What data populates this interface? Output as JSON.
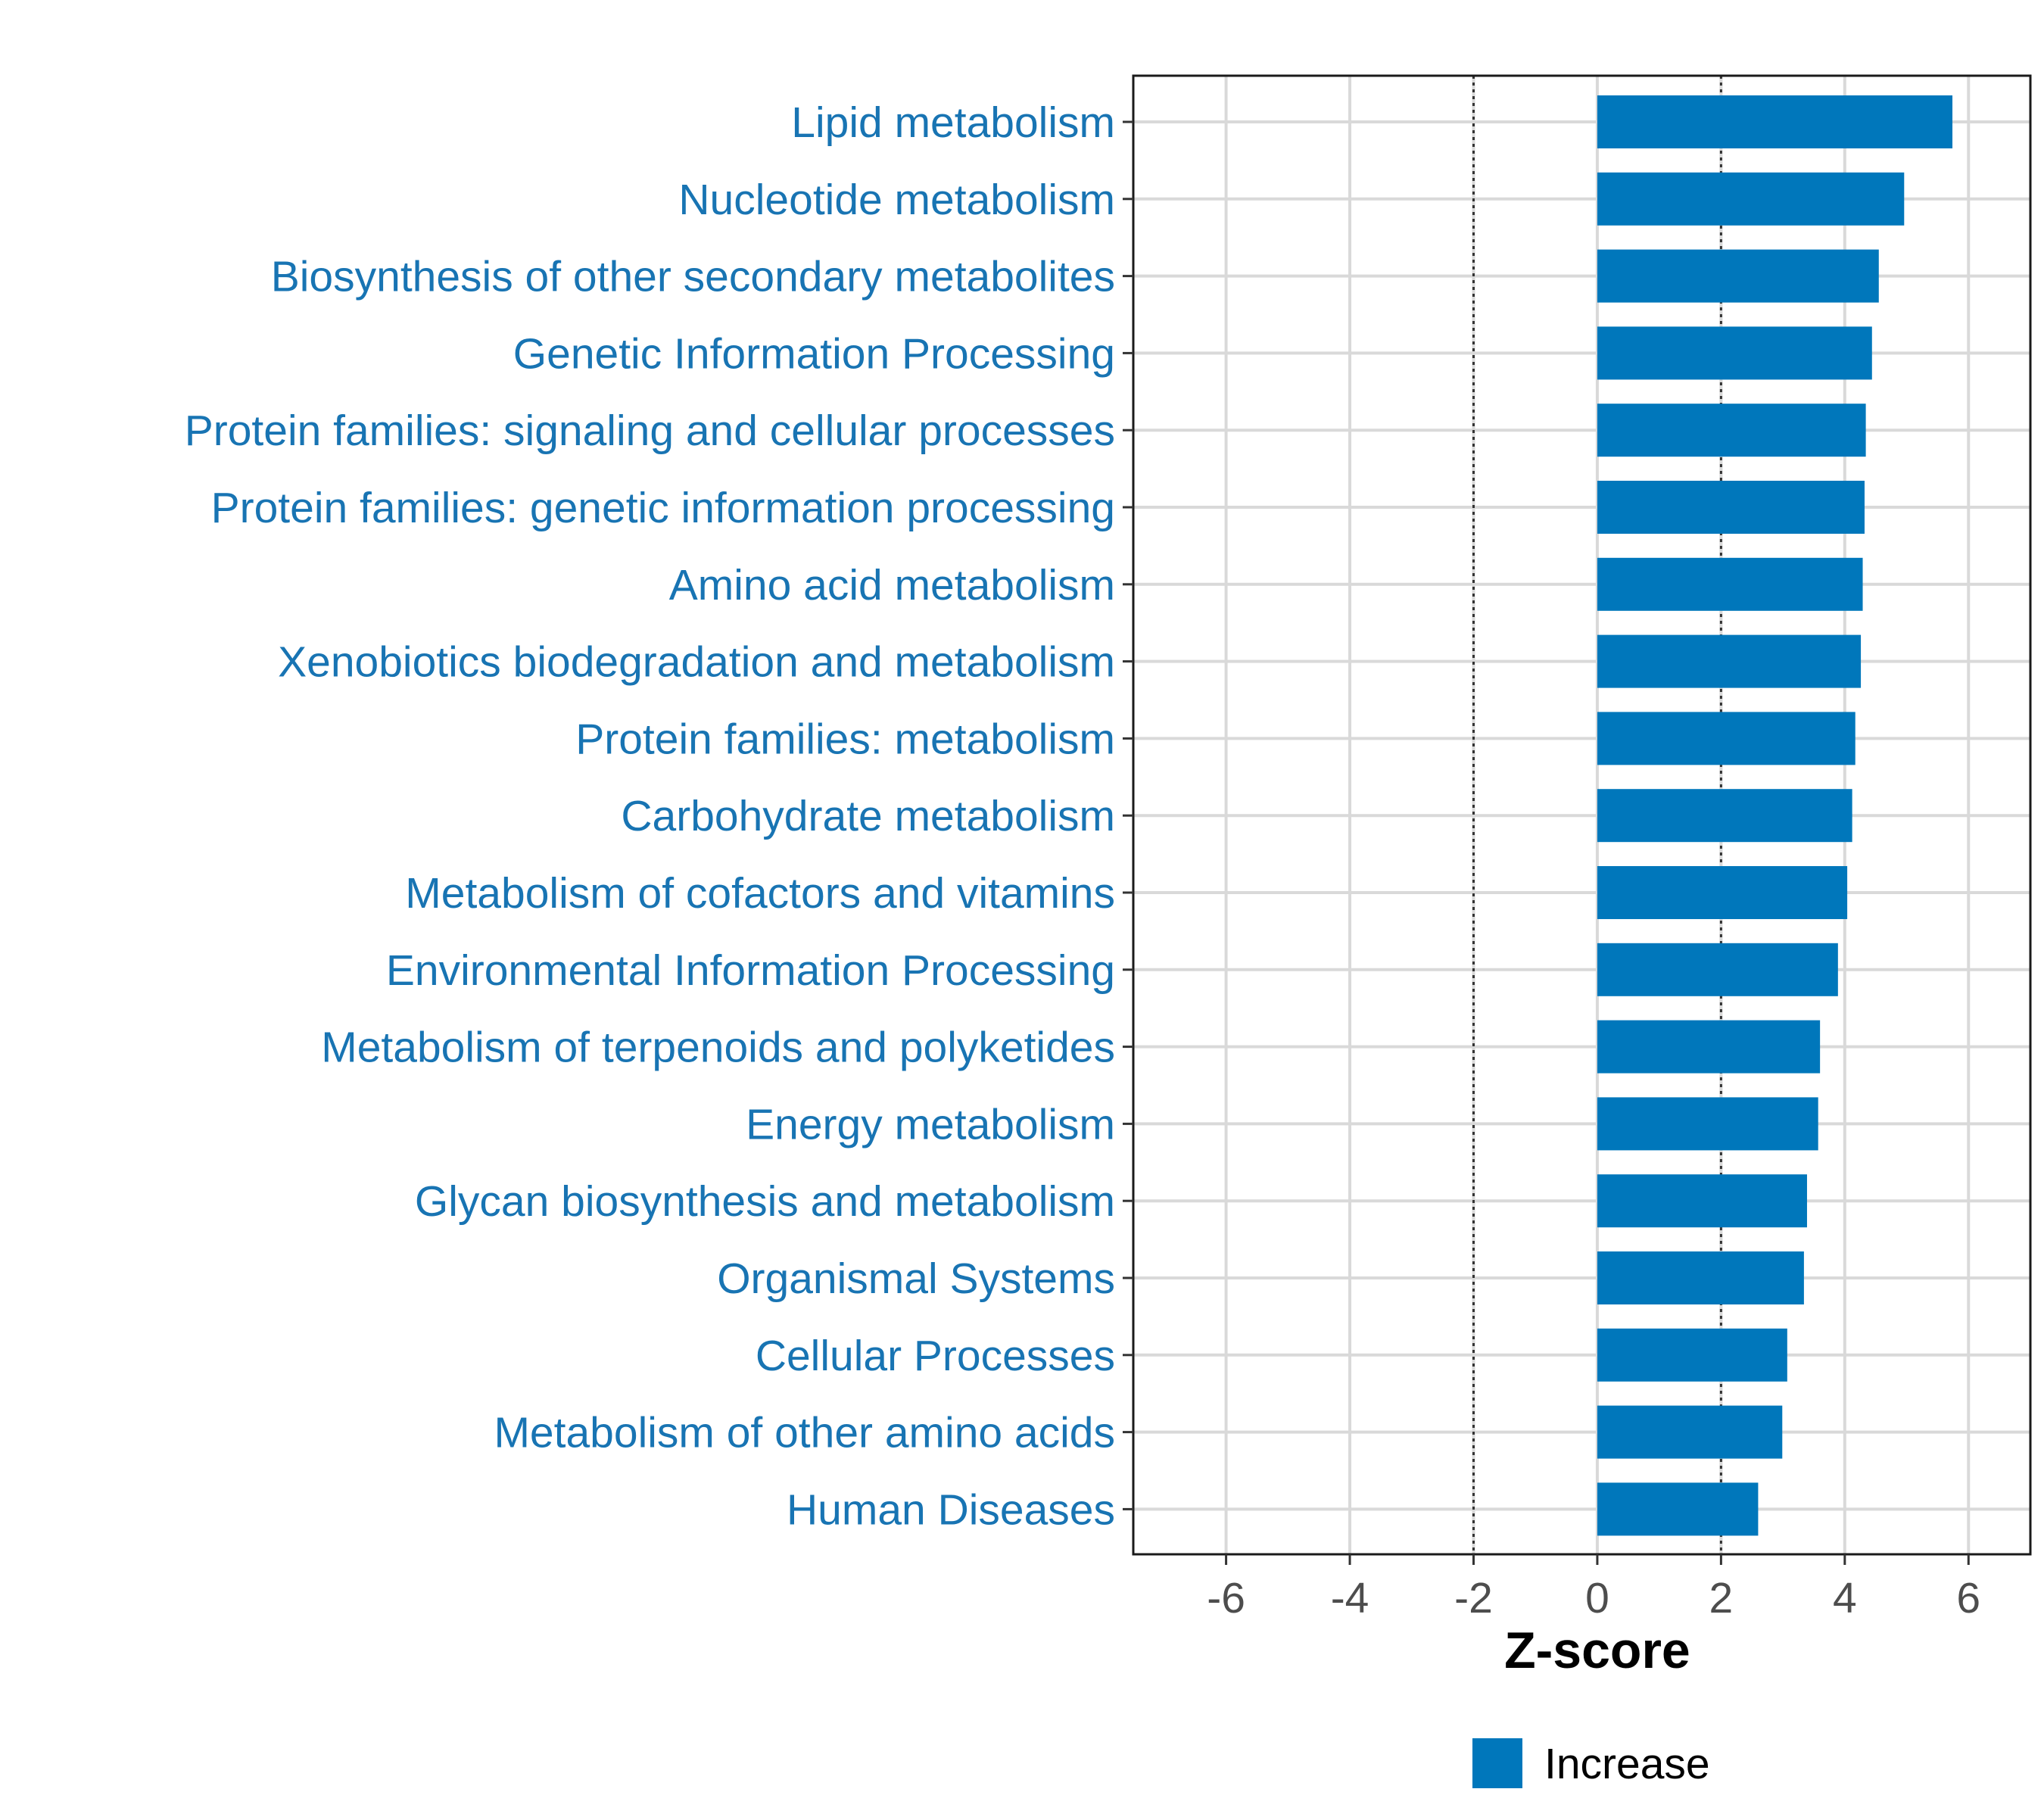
{
  "chart_data": {
    "type": "bar",
    "orientation": "horizontal",
    "title": "",
    "xlabel": "Z-score",
    "ylabel": "",
    "xlim": [
      -7.5,
      7.0
    ],
    "xticks": [
      -6,
      -4,
      -2,
      0,
      2,
      4,
      6
    ],
    "xtick_labels": [
      "-6",
      "-4",
      "-2",
      "0",
      "2",
      "4",
      "6"
    ],
    "reference_lines": [
      -2,
      2
    ],
    "grid": true,
    "categories": [
      "Lipid metabolism",
      "Nucleotide metabolism",
      "Biosynthesis of other secondary metabolites",
      "Genetic Information Processing",
      "Protein families: signaling and cellular processes",
      "Protein families: genetic information processing",
      "Amino acid metabolism",
      "Xenobiotics biodegradation and metabolism",
      "Protein families: metabolism",
      "Carbohydrate metabolism",
      "Metabolism of cofactors and vitamins",
      "Environmental Information Processing",
      "Metabolism of terpenoids and polyketides",
      "Energy metabolism",
      "Glycan biosynthesis and metabolism",
      "Organismal Systems",
      "Cellular Processes",
      "Metabolism of other amino acids",
      "Human Diseases"
    ],
    "series": [
      {
        "name": "Increase",
        "color": "#0077BB",
        "values": [
          5.74,
          4.96,
          4.55,
          4.44,
          4.34,
          4.32,
          4.29,
          4.26,
          4.17,
          4.12,
          4.04,
          3.89,
          3.6,
          3.57,
          3.39,
          3.34,
          3.07,
          2.99,
          2.6
        ]
      }
    ],
    "legend": {
      "position": "bottom",
      "entries": [
        {
          "label": "Increase",
          "color": "#0077BB"
        }
      ]
    }
  }
}
